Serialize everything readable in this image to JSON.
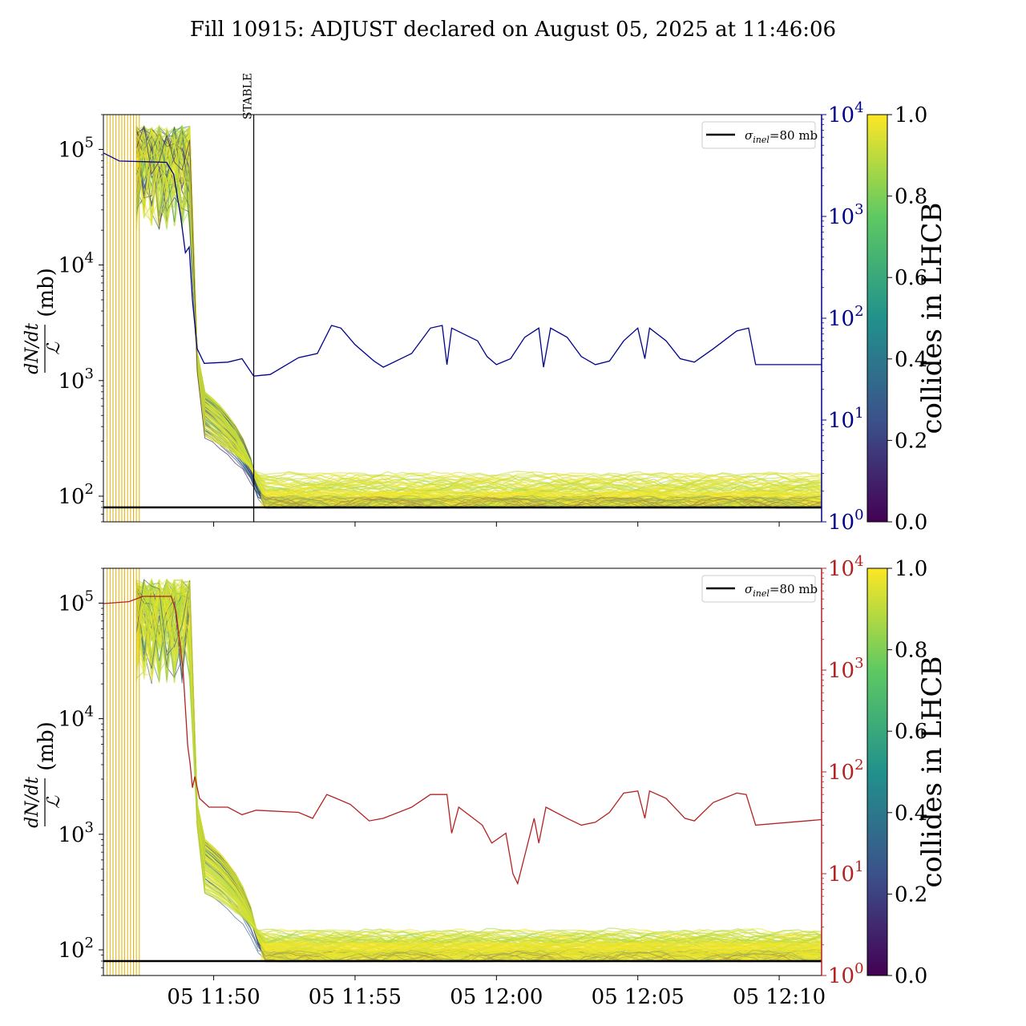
{
  "figure": {
    "title": "Fill 10915: ADJUST declared on August 05, 2025 at 11:46:06"
  },
  "colors": {
    "right_axis_top": "#00008b",
    "right_axis_bottom": "#b22222",
    "reference_line": "#000000",
    "stable_line": "#000000",
    "colormap": [
      "#440154",
      "#3b528b",
      "#21918c",
      "#5ec962",
      "#fde725"
    ]
  },
  "chart_data": [
    {
      "type": "line",
      "panel": "top",
      "ylabel_left_numerator": "dN/dt",
      "ylabel_left_denominator": "ℒ",
      "ylabel_left_unit": "(mb)",
      "yscale_left": "log",
      "ylim_left": [
        60,
        200000
      ],
      "yticks_left": [
        {
          "value": 100,
          "label": "10",
          "exp": "2"
        },
        {
          "value": 1000,
          "label": "10",
          "exp": "3"
        },
        {
          "value": 10000,
          "label": "10",
          "exp": "4"
        },
        {
          "value": 100000,
          "label": "10",
          "exp": "5"
        }
      ],
      "yscale_right": "log",
      "ylim_right": [
        1,
        10000
      ],
      "yticks_right": [
        {
          "value": 1,
          "label": "10",
          "exp": "0"
        },
        {
          "value": 10,
          "label": "10",
          "exp": "1"
        },
        {
          "value": 100,
          "label": "10",
          "exp": "2"
        },
        {
          "value": 1000,
          "label": "10",
          "exp": "3"
        },
        {
          "value": 10000,
          "label": "10",
          "exp": "4"
        }
      ],
      "xlim": [
        "11:46:06",
        "12:11:30"
      ],
      "xticks": [
        "11:50",
        "11:55",
        "12:00",
        "12:05",
        "12:10"
      ],
      "xtick_labels_shown": false,
      "vline": {
        "x": "11:51:25",
        "label": "STABLE"
      },
      "reference_line": {
        "y": 80,
        "label": "σinel=80 mb"
      },
      "legend": {
        "placement": "top-right",
        "entries": [
          {
            "symbol": "σ",
            "subscript": "inel",
            "text": "=80 mb"
          }
        ]
      },
      "colorbar": {
        "label": "collides in LHCB",
        "range": [
          0.0,
          1.0
        ],
        "ticks": [
          "0.0",
          "0.2",
          "0.4",
          "0.6",
          "0.8",
          "1.0"
        ]
      },
      "bunch_band": {
        "low_start": 800,
        "low_plateau": 75,
        "high_start": 320,
        "high_plateau": 140
      },
      "right_series": {
        "color": "#00008b",
        "points": [
          [
            "11:46:06",
            4200
          ],
          [
            "11:46:40",
            3500
          ],
          [
            "11:47:30",
            3450
          ],
          [
            "11:48:20",
            3400
          ],
          [
            "11:48:35",
            2600
          ],
          [
            "11:48:50",
            1000
          ],
          [
            "11:49:00",
            440
          ],
          [
            "11:49:08",
            500
          ],
          [
            "11:49:15",
            150
          ],
          [
            "11:49:25",
            50
          ],
          [
            "11:49:40",
            36
          ],
          [
            "11:50:30",
            37
          ],
          [
            "11:51:00",
            40
          ],
          [
            "11:51:25",
            27
          ],
          [
            "11:52:00",
            28
          ],
          [
            "11:53:00",
            41
          ],
          [
            "11:53:40",
            45
          ],
          [
            "11:54:10",
            85
          ],
          [
            "11:54:30",
            80
          ],
          [
            "11:55:00",
            55
          ],
          [
            "11:55:40",
            38
          ],
          [
            "11:56:00",
            33
          ],
          [
            "11:57:00",
            45
          ],
          [
            "11:57:40",
            80
          ],
          [
            "11:58:05",
            85
          ],
          [
            "11:58:15",
            35
          ],
          [
            "11:58:25",
            80
          ],
          [
            "11:59:20",
            60
          ],
          [
            "11:59:40",
            42
          ],
          [
            "12:00:00",
            35
          ],
          [
            "12:00:30",
            40
          ],
          [
            "12:01:00",
            65
          ],
          [
            "12:01:30",
            80
          ],
          [
            "12:01:40",
            33
          ],
          [
            "12:01:55",
            80
          ],
          [
            "12:02:30",
            65
          ],
          [
            "12:03:00",
            42
          ],
          [
            "12:03:30",
            35
          ],
          [
            "12:04:00",
            38
          ],
          [
            "12:04:30",
            60
          ],
          [
            "12:05:00",
            80
          ],
          [
            "12:05:15",
            40
          ],
          [
            "12:05:25",
            80
          ],
          [
            "12:06:00",
            60
          ],
          [
            "12:06:30",
            40
          ],
          [
            "12:07:00",
            37
          ],
          [
            "12:07:40",
            50
          ],
          [
            "12:08:30",
            75
          ],
          [
            "12:08:55",
            80
          ],
          [
            "12:09:10",
            35
          ],
          [
            "12:11:30",
            35
          ]
        ]
      }
    },
    {
      "type": "line",
      "panel": "bottom",
      "ylabel_left_numerator": "dN/dt",
      "ylabel_left_denominator": "ℒ",
      "ylabel_left_unit": "(mb)",
      "yscale_left": "log",
      "ylim_left": [
        60,
        200000
      ],
      "yticks_left": [
        {
          "value": 100,
          "label": "10",
          "exp": "2"
        },
        {
          "value": 1000,
          "label": "10",
          "exp": "3"
        },
        {
          "value": 10000,
          "label": "10",
          "exp": "4"
        },
        {
          "value": 100000,
          "label": "10",
          "exp": "5"
        }
      ],
      "yscale_right": "log",
      "ylim_right": [
        1,
        10000
      ],
      "yticks_right": [
        {
          "value": 1,
          "label": "10",
          "exp": "0"
        },
        {
          "value": 10,
          "label": "10",
          "exp": "1"
        },
        {
          "value": 100,
          "label": "10",
          "exp": "2"
        },
        {
          "value": 1000,
          "label": "10",
          "exp": "3"
        },
        {
          "value": 10000,
          "label": "10",
          "exp": "4"
        }
      ],
      "xlim": [
        "11:46:06",
        "12:11:30"
      ],
      "xticks": [
        "11:50",
        "11:55",
        "12:00",
        "12:05",
        "12:10"
      ],
      "xtick_labels": [
        "05 11:50",
        "05 11:55",
        "05 12:00",
        "05 12:05",
        "05 12:10"
      ],
      "xtick_labels_shown": true,
      "reference_line": {
        "y": 80,
        "label": "σinel=80 mb"
      },
      "legend": {
        "placement": "top-right",
        "entries": [
          {
            "symbol": "σ",
            "subscript": "inel",
            "text": "=80 mb"
          }
        ]
      },
      "colorbar": {
        "label": "collides in LHCB",
        "range": [
          0.0,
          1.0
        ],
        "ticks": [
          "0.0",
          "0.2",
          "0.4",
          "0.6",
          "0.8",
          "1.0"
        ]
      },
      "bunch_band": {
        "low_start": 900,
        "low_plateau": 80,
        "high_start": 300,
        "high_plateau": 130
      },
      "right_series": {
        "color": "#b22222",
        "points": [
          [
            "11:46:06",
            4500
          ],
          [
            "11:47:00",
            4700
          ],
          [
            "11:47:30",
            5300
          ],
          [
            "11:48:30",
            5300
          ],
          [
            "11:48:40",
            3800
          ],
          [
            "11:48:55",
            1000
          ],
          [
            "11:49:05",
            180
          ],
          [
            "11:49:10",
            120
          ],
          [
            "11:49:15",
            70
          ],
          [
            "11:49:20",
            90
          ],
          [
            "11:49:30",
            55
          ],
          [
            "11:49:50",
            45
          ],
          [
            "11:50:30",
            45
          ],
          [
            "11:51:00",
            38
          ],
          [
            "11:51:30",
            42
          ],
          [
            "11:53:00",
            40
          ],
          [
            "11:53:30",
            35
          ],
          [
            "11:54:00",
            60
          ],
          [
            "11:54:20",
            55
          ],
          [
            "11:54:50",
            48
          ],
          [
            "11:55:30",
            33
          ],
          [
            "11:56:00",
            35
          ],
          [
            "11:57:00",
            45
          ],
          [
            "11:57:40",
            60
          ],
          [
            "11:58:15",
            60
          ],
          [
            "11:58:25",
            25
          ],
          [
            "11:58:40",
            45
          ],
          [
            "11:59:30",
            30
          ],
          [
            "11:59:50",
            20
          ],
          [
            "12:00:20",
            25
          ],
          [
            "12:00:35",
            10
          ],
          [
            "12:00:45",
            8
          ],
          [
            "12:01:00",
            15
          ],
          [
            "12:01:20",
            35
          ],
          [
            "12:01:30",
            20
          ],
          [
            "12:01:45",
            45
          ],
          [
            "12:02:30",
            35
          ],
          [
            "12:03:00",
            30
          ],
          [
            "12:03:30",
            32
          ],
          [
            "12:04:00",
            40
          ],
          [
            "12:04:30",
            62
          ],
          [
            "12:05:00",
            65
          ],
          [
            "12:05:15",
            35
          ],
          [
            "12:05:25",
            65
          ],
          [
            "12:06:00",
            55
          ],
          [
            "12:06:40",
            35
          ],
          [
            "12:07:00",
            33
          ],
          [
            "12:07:40",
            50
          ],
          [
            "12:08:30",
            62
          ],
          [
            "12:08:50",
            60
          ],
          [
            "12:09:10",
            30
          ],
          [
            "12:11:30",
            34
          ]
        ]
      }
    }
  ]
}
